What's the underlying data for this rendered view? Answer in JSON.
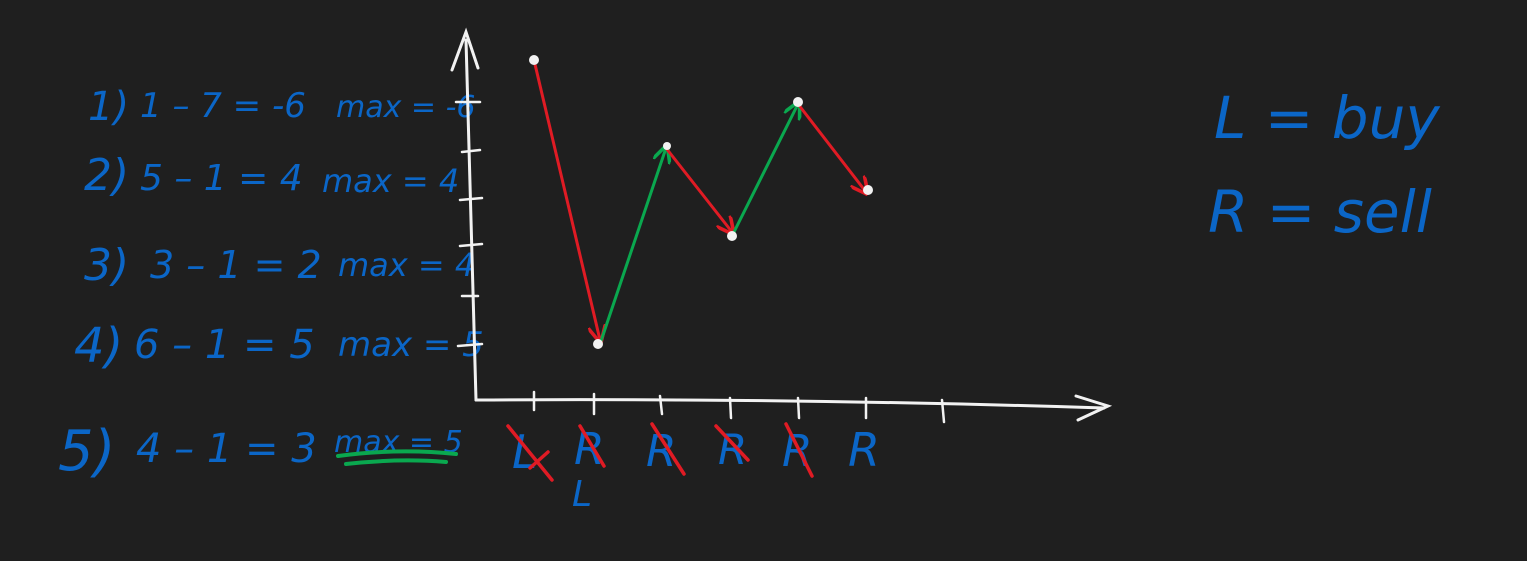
{
  "steps": [
    {
      "num": "1)",
      "expr": "1 – 7 = -6",
      "max": "max = -6"
    },
    {
      "num": "2)",
      "expr": "5 – 1 = 4",
      "max": "max = 4"
    },
    {
      "num": "3)",
      "expr": "3 – 1 = 2",
      "max": "max = 4"
    },
    {
      "num": "4)",
      "expr": "6 – 1 = 5",
      "max": "max = 5"
    },
    {
      "num": "5)",
      "expr": "4 – 1 = 3",
      "max": "max = 5"
    }
  ],
  "legend": {
    "line1": "L = buy",
    "line2": "R = sell"
  },
  "pointer_labels": [
    "L",
    "R",
    "R",
    "R",
    "R",
    "R"
  ],
  "pointer_sublabel": "L",
  "prices": [
    7,
    1,
    5,
    3,
    6,
    4
  ],
  "colors": {
    "background": "#1f1f1f",
    "ink_blue": "#0b66c7",
    "ink_red": "#e01b24",
    "ink_green": "#0aa84f",
    "ink_white": "#f2f2f2"
  }
}
